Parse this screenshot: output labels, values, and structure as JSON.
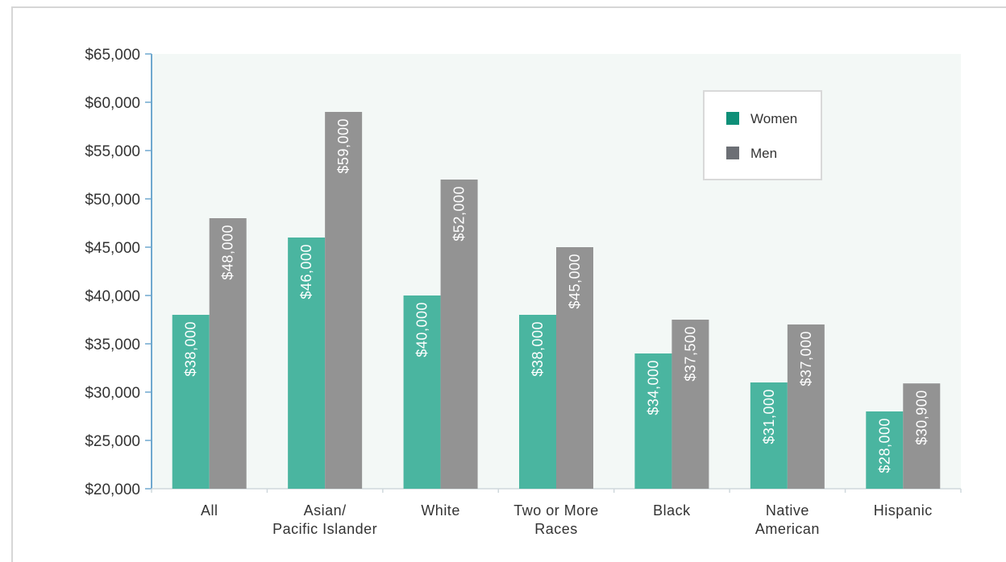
{
  "chart_data": {
    "type": "bar",
    "categories": [
      [
        "All"
      ],
      [
        "Asian/",
        "Pacific Islander"
      ],
      [
        "White"
      ],
      [
        "Two or More",
        "Races"
      ],
      [
        "Black"
      ],
      [
        "Native",
        "American"
      ],
      [
        "Hispanic"
      ]
    ],
    "series": [
      {
        "name": "Women",
        "color": "#4ab5a0",
        "values": [
          38000,
          46000,
          40000,
          38000,
          34000,
          31000,
          28000
        ],
        "labels": [
          "$38,000",
          "$46,000",
          "$40,000",
          "$38,000",
          "$34,000",
          "$31,000",
          "$28,000"
        ]
      },
      {
        "name": "Men",
        "color": "#939393",
        "values": [
          48000,
          59000,
          52000,
          45000,
          37500,
          37000,
          30900
        ],
        "labels": [
          "$48,000",
          "$59,000",
          "$52,000",
          "$45,000",
          "$37,500",
          "$37,000",
          "$30,900"
        ]
      }
    ],
    "ylim": [
      20000,
      65000
    ],
    "yticks": [
      {
        "value": 20000,
        "label": "$20,000"
      },
      {
        "value": 25000,
        "label": "$25,000"
      },
      {
        "value": 30000,
        "label": "$30,000"
      },
      {
        "value": 35000,
        "label": "$35,000"
      },
      {
        "value": 40000,
        "label": "$40,000"
      },
      {
        "value": 45000,
        "label": "$45,000"
      },
      {
        "value": 50000,
        "label": "$50,000"
      },
      {
        "value": 55000,
        "label": "$55,000"
      },
      {
        "value": 60000,
        "label": "$60,000"
      },
      {
        "value": 65000,
        "label": "$65,000"
      }
    ],
    "legend": {
      "position": "top-right",
      "entries": [
        {
          "label": "Women",
          "color": "#0f8f78"
        },
        {
          "label": "Men",
          "color": "#6c6f75"
        }
      ]
    },
    "plot_background": "#f3f8f6",
    "axis_color": "#6fa8cf",
    "grid": false
  }
}
